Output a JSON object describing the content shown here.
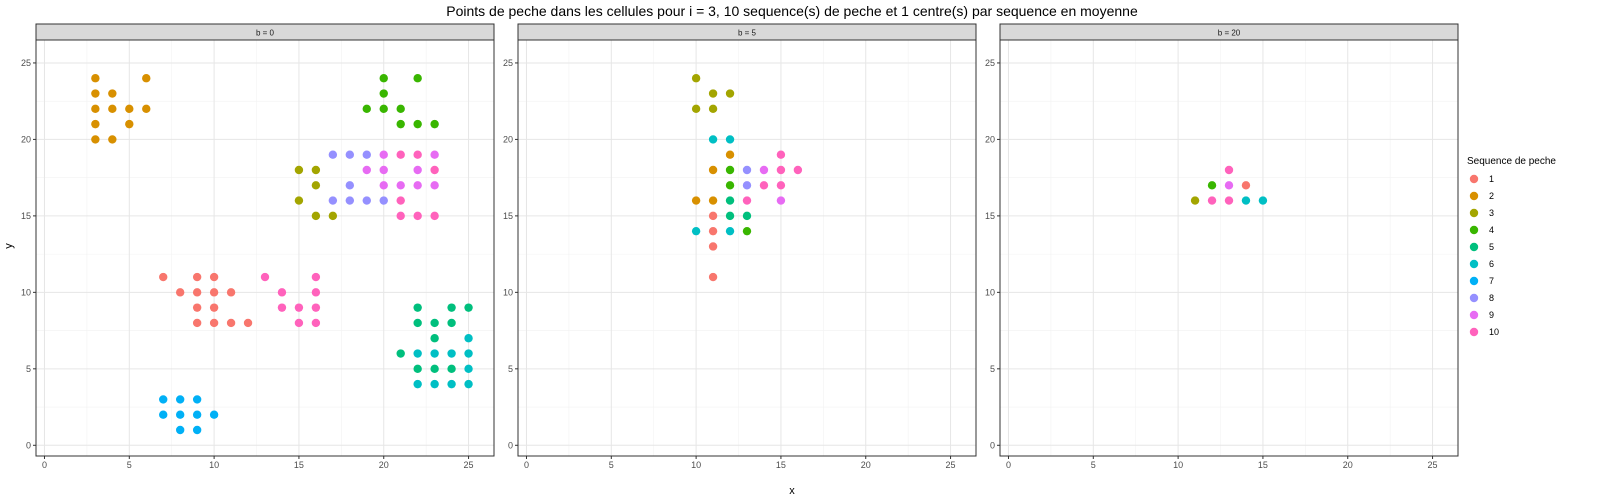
{
  "chart_data": {
    "type": "scatter",
    "title": "Points de peche dans les cellules pour i = 3, 10 sequence(s) de peche et 1 centre(s) par sequence en moyenne",
    "xlabel": "x",
    "ylabel": "y",
    "xlim": [
      -0.5,
      26.5
    ],
    "ylim": [
      -0.7,
      26.5
    ],
    "x_ticks": [
      0,
      5,
      10,
      15,
      20,
      25
    ],
    "y_ticks": [
      0,
      5,
      10,
      15,
      20,
      25
    ],
    "grid": true,
    "legend": {
      "title": "Sequence de peche",
      "placement": "right",
      "entries": [
        {
          "label": "1",
          "color": "#F8766D"
        },
        {
          "label": "2",
          "color": "#D89000"
        },
        {
          "label": "3",
          "color": "#A3A500"
        },
        {
          "label": "4",
          "color": "#39B600"
        },
        {
          "label": "5",
          "color": "#00BF7D"
        },
        {
          "label": "6",
          "color": "#00BFC4"
        },
        {
          "label": "7",
          "color": "#00B0F6"
        },
        {
          "label": "8",
          "color": "#9590FF"
        },
        {
          "label": "9",
          "color": "#E76BF3"
        },
        {
          "label": "10",
          "color": "#FF62BC"
        }
      ]
    },
    "panels": [
      {
        "strip": "b = 0",
        "series": [
          {
            "name": "1",
            "points": [
              [
                7,
                11
              ],
              [
                8,
                10
              ],
              [
                9,
                11
              ],
              [
                9,
                10
              ],
              [
                9,
                9
              ],
              [
                9,
                8
              ],
              [
                10,
                11
              ],
              [
                10,
                10
              ],
              [
                10,
                9
              ],
              [
                10,
                8
              ],
              [
                11,
                10
              ],
              [
                11,
                8
              ],
              [
                12,
                8
              ]
            ]
          },
          {
            "name": "2",
            "points": [
              [
                3,
                24
              ],
              [
                3,
                23
              ],
              [
                3,
                22
              ],
              [
                3,
                21
              ],
              [
                3,
                20
              ],
              [
                4,
                23
              ],
              [
                4,
                22
              ],
              [
                4,
                20
              ],
              [
                5,
                22
              ],
              [
                5,
                21
              ],
              [
                6,
                24
              ],
              [
                6,
                22
              ]
            ]
          },
          {
            "name": "3",
            "points": [
              [
                15,
                18
              ],
              [
                15,
                16
              ],
              [
                16,
                18
              ],
              [
                16,
                17
              ],
              [
                16,
                15
              ],
              [
                17,
                15
              ]
            ]
          },
          {
            "name": "4",
            "points": [
              [
                19,
                22
              ],
              [
                20,
                24
              ],
              [
                20,
                23
              ],
              [
                20,
                22
              ],
              [
                21,
                22
              ],
              [
                21,
                21
              ],
              [
                22,
                24
              ],
              [
                22,
                21
              ],
              [
                23,
                21
              ]
            ]
          },
          {
            "name": "5",
            "points": [
              [
                21,
                6
              ],
              [
                22,
                9
              ],
              [
                22,
                8
              ],
              [
                22,
                5
              ],
              [
                23,
                8
              ],
              [
                23,
                7
              ],
              [
                23,
                5
              ],
              [
                24,
                9
              ],
              [
                24,
                8
              ],
              [
                24,
                5
              ],
              [
                25,
                9
              ]
            ]
          },
          {
            "name": "6",
            "points": [
              [
                22,
                6
              ],
              [
                22,
                4
              ],
              [
                23,
                6
              ],
              [
                23,
                4
              ],
              [
                24,
                6
              ],
              [
                24,
                4
              ],
              [
                25,
                7
              ],
              [
                25,
                6
              ],
              [
                25,
                5
              ],
              [
                25,
                4
              ]
            ]
          },
          {
            "name": "7",
            "points": [
              [
                7,
                3
              ],
              [
                7,
                2
              ],
              [
                8,
                3
              ],
              [
                8,
                2
              ],
              [
                8,
                1
              ],
              [
                9,
                3
              ],
              [
                9,
                2
              ],
              [
                9,
                1
              ],
              [
                10,
                2
              ]
            ]
          },
          {
            "name": "8",
            "points": [
              [
                17,
                19
              ],
              [
                17,
                16
              ],
              [
                18,
                19
              ],
              [
                18,
                17
              ],
              [
                18,
                16
              ],
              [
                19,
                19
              ],
              [
                19,
                16
              ],
              [
                20,
                16
              ]
            ]
          },
          {
            "name": "9",
            "points": [
              [
                19,
                18
              ],
              [
                20,
                19
              ],
              [
                20,
                18
              ],
              [
                20,
                17
              ],
              [
                21,
                17
              ],
              [
                22,
                18
              ],
              [
                22,
                17
              ],
              [
                23,
                19
              ],
              [
                23,
                17
              ]
            ]
          },
          {
            "name": "10",
            "points": [
              [
                13,
                11
              ],
              [
                14,
                10
              ],
              [
                14,
                9
              ],
              [
                15,
                9
              ],
              [
                15,
                8
              ],
              [
                16,
                11
              ],
              [
                16,
                10
              ],
              [
                16,
                9
              ],
              [
                16,
                8
              ],
              [
                21,
                19
              ],
              [
                21,
                16
              ],
              [
                21,
                15
              ],
              [
                22,
                19
              ],
              [
                22,
                15
              ],
              [
                23,
                18
              ],
              [
                23,
                15
              ]
            ]
          }
        ]
      },
      {
        "strip": "b = 5",
        "series": [
          {
            "name": "1",
            "points": [
              [
                11,
                15
              ],
              [
                11,
                14
              ],
              [
                11,
                13
              ],
              [
                11,
                11
              ]
            ]
          },
          {
            "name": "2",
            "points": [
              [
                10,
                16
              ],
              [
                11,
                18
              ],
              [
                11,
                16
              ],
              [
                12,
                19
              ]
            ]
          },
          {
            "name": "3",
            "points": [
              [
                10,
                24
              ],
              [
                10,
                22
              ],
              [
                11,
                23
              ],
              [
                11,
                22
              ],
              [
                12,
                23
              ]
            ]
          },
          {
            "name": "4",
            "points": [
              [
                12,
                18
              ],
              [
                12,
                17
              ],
              [
                13,
                14
              ]
            ]
          },
          {
            "name": "5",
            "points": [
              [
                12,
                16
              ],
              [
                12,
                15
              ],
              [
                13,
                15
              ]
            ]
          },
          {
            "name": "6",
            "points": [
              [
                10,
                14
              ],
              [
                11,
                20
              ],
              [
                12,
                20
              ],
              [
                12,
                14
              ]
            ]
          },
          {
            "name": "8",
            "points": [
              [
                13,
                18
              ],
              [
                13,
                17
              ]
            ]
          },
          {
            "name": "9",
            "points": [
              [
                14,
                18
              ],
              [
                15,
                16
              ]
            ]
          },
          {
            "name": "10",
            "points": [
              [
                13,
                16
              ],
              [
                14,
                17
              ],
              [
                15,
                19
              ],
              [
                15,
                18
              ],
              [
                15,
                17
              ],
              [
                16,
                18
              ]
            ]
          }
        ]
      },
      {
        "strip": "b = 20",
        "series": [
          {
            "name": "1",
            "points": [
              [
                14,
                17
              ]
            ]
          },
          {
            "name": "3",
            "points": [
              [
                11,
                16
              ]
            ]
          },
          {
            "name": "4",
            "points": [
              [
                12,
                17
              ]
            ]
          },
          {
            "name": "6",
            "points": [
              [
                14,
                16
              ],
              [
                15,
                16
              ]
            ]
          },
          {
            "name": "9",
            "points": [
              [
                13,
                17
              ]
            ]
          },
          {
            "name": "10",
            "points": [
              [
                12,
                16
              ],
              [
                13,
                18
              ],
              [
                13,
                16
              ]
            ]
          }
        ]
      }
    ]
  }
}
